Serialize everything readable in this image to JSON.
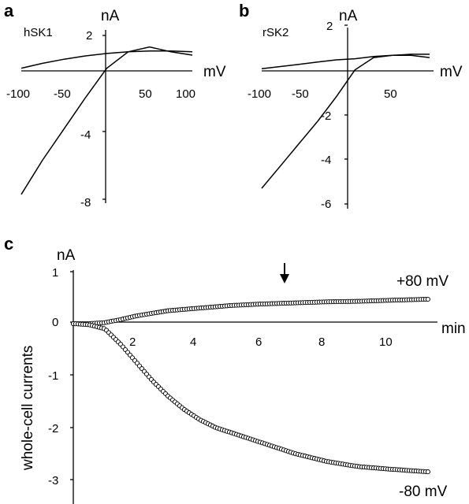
{
  "panels": {
    "a": {
      "letter": "a",
      "cell_name": "hSK1",
      "y_unit": "nA",
      "x_unit": "mV",
      "x_tick_labels": [
        "-100",
        "-50",
        "50",
        "100"
      ],
      "y_tick_labels": [
        "2",
        "-4",
        "-8"
      ]
    },
    "b": {
      "letter": "b",
      "cell_name": "rSK2",
      "y_unit": "nA",
      "x_unit": "mV",
      "x_tick_labels": [
        "-100",
        "-50",
        "50"
      ],
      "y_tick_labels": [
        "2",
        "-2",
        "-4",
        "-6"
      ]
    },
    "c": {
      "letter": "c",
      "y_unit": "nA",
      "x_unit": "min",
      "ylabel": "whole-cell currents",
      "x_tick_labels": [
        "2",
        "4",
        "6",
        "8",
        "10"
      ],
      "y_tick_labels": [
        "1",
        "0",
        "-1",
        "-2",
        "-3"
      ],
      "label_pos": "+80 mV",
      "label_neg": "-80 mV"
    }
  },
  "chart_data": [
    {
      "type": "line",
      "panel": "a",
      "title": "hSK1",
      "xlabel": "mV",
      "ylabel": "nA",
      "xlim": [
        -100,
        100
      ],
      "ylim": [
        -8,
        2
      ],
      "series": [
        {
          "x": [
            -100,
            -75,
            -50,
            -25,
            0,
            25,
            50,
            75,
            100
          ],
          "y": [
            -7.7,
            -5.6,
            -3.7,
            -1.8,
            0.0,
            1.0,
            1.3,
            1.0,
            0.8
          ]
        },
        {
          "x": [
            -100,
            -75,
            -50,
            -25,
            0,
            25,
            50,
            75,
            100
          ],
          "y": [
            0.0,
            0.3,
            0.55,
            0.75,
            0.9,
            1.0,
            1.05,
            1.05,
            1.0
          ]
        }
      ]
    },
    {
      "type": "line",
      "panel": "b",
      "title": "rSK2",
      "xlabel": "mV",
      "ylabel": "nA",
      "xlim": [
        -100,
        80
      ],
      "ylim": [
        -6,
        2
      ],
      "series": [
        {
          "x": [
            -100,
            -80,
            -60,
            -40,
            -20,
            0,
            20,
            40,
            60,
            80
          ],
          "y": [
            -5.3,
            -4.3,
            -3.3,
            -2.3,
            -1.2,
            0.0,
            0.55,
            0.65,
            0.65,
            0.55
          ]
        },
        {
          "x": [
            -100,
            -80,
            -60,
            -40,
            -20,
            0,
            20,
            40,
            60,
            80
          ],
          "y": [
            0.05,
            0.15,
            0.25,
            0.35,
            0.45,
            0.5,
            0.6,
            0.65,
            0.7,
            0.7
          ]
        }
      ]
    },
    {
      "type": "scatter",
      "panel": "c",
      "xlabel": "min",
      "ylabel": "whole-cell currents",
      "xlim": [
        0,
        11.5
      ],
      "ylim": [
        -3,
        1
      ],
      "annotations": [
        {
          "type": "arrow",
          "x": 6.6,
          "y": 1.0
        },
        {
          "text": "+80 mV"
        },
        {
          "text": "-80 mV"
        }
      ],
      "series": [
        {
          "name": "+80 mV",
          "x": [
            0,
            0.5,
            1,
            1.5,
            2,
            2.5,
            3,
            4,
            5,
            6,
            7,
            8,
            9,
            10,
            11.2
          ],
          "y": [
            0.0,
            0.0,
            0.02,
            0.08,
            0.15,
            0.2,
            0.25,
            0.3,
            0.35,
            0.38,
            0.4,
            0.42,
            0.43,
            0.45,
            0.47
          ]
        },
        {
          "name": "-80 mV",
          "x": [
            0,
            0.5,
            1,
            1.5,
            2,
            2.5,
            3,
            3.5,
            4,
            4.5,
            5,
            6,
            7,
            8,
            9,
            10,
            11.2
          ],
          "y": [
            0.0,
            -0.02,
            -0.1,
            -0.4,
            -0.75,
            -1.1,
            -1.4,
            -1.65,
            -1.85,
            -2.0,
            -2.1,
            -2.3,
            -2.5,
            -2.65,
            -2.75,
            -2.8,
            -2.85
          ]
        }
      ]
    }
  ]
}
